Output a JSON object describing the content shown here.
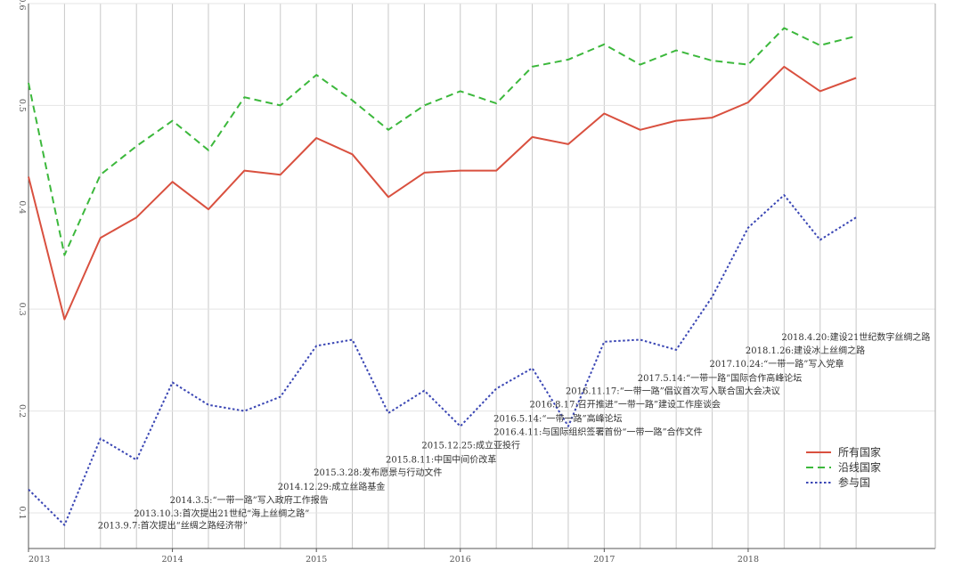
{
  "chart_data": {
    "type": "line",
    "title": "",
    "xlabel": "",
    "ylabel": "",
    "xlim": [
      2013.0,
      2019.3
    ],
    "ylim": [
      0.065,
      0.6
    ],
    "y_ticks": [
      "0.1",
      "0.2",
      "0.3",
      "0.4",
      "0.5",
      "0.6"
    ],
    "y_tick_values": [
      0.1,
      0.2,
      0.3,
      0.4,
      0.5,
      0.6
    ],
    "x_ticks": [
      "2013",
      "2014",
      "2015",
      "2016",
      "2017",
      "2018"
    ],
    "x_tick_values": [
      2013,
      2014,
      2015,
      2016,
      2017,
      2018
    ],
    "grid": true,
    "legend_position": "bottom-right",
    "x": [
      2013.0,
      2013.25,
      2013.5,
      2013.75,
      2014.0,
      2014.25,
      2014.5,
      2014.75,
      2015.0,
      2015.25,
      2015.5,
      2015.75,
      2016.0,
      2016.25,
      2016.5,
      2016.75,
      2017.0,
      2017.25,
      2017.5,
      2017.75,
      2018.0,
      2018.25,
      2018.5,
      2018.75
    ],
    "series": [
      {
        "name": "所有国家",
        "color": "#d9503f",
        "dash": "solid",
        "values": [
          0.43,
          0.29,
          0.37,
          0.39,
          0.425,
          0.398,
          0.436,
          0.432,
          0.468,
          0.452,
          0.41,
          0.434,
          0.436,
          0.436,
          0.469,
          0.462,
          0.492,
          0.476,
          0.485,
          0.488,
          0.503,
          0.538,
          0.514,
          0.527
        ]
      },
      {
        "name": "沿线国家",
        "color": "#3cb83c",
        "dash": "dashed",
        "values": [
          0.522,
          0.353,
          0.432,
          0.46,
          0.485,
          0.456,
          0.508,
          0.5,
          0.53,
          0.505,
          0.476,
          0.5,
          0.514,
          0.502,
          0.538,
          0.545,
          0.56,
          0.54,
          0.554,
          0.544,
          0.54,
          0.576,
          0.559,
          0.568
        ]
      },
      {
        "name": "参与国",
        "color": "#3a46b4",
        "dash": "dotted",
        "values": [
          0.123,
          0.088,
          0.173,
          0.152,
          0.228,
          0.206,
          0.2,
          0.214,
          0.264,
          0.27,
          0.198,
          0.22,
          0.185,
          0.222,
          0.242,
          0.185,
          0.268,
          0.27,
          0.26,
          0.312,
          0.38,
          0.412,
          0.368,
          0.39
        ]
      }
    ],
    "annotations": [
      {
        "text": "2013.9.7:首次提出“丝绸之路经济带”",
        "x": 2013.5,
        "y": 0.088
      },
      {
        "text": "2013.10.3:首次提出21世纪“海上丝绸之路”",
        "x": 2013.75,
        "y": 0.1
      },
      {
        "text": "2014.3.5:“一带一路”写入政府工作报告",
        "x": 2014.0,
        "y": 0.113
      },
      {
        "text": "2014.12.29:成立丝路基金",
        "x": 2014.75,
        "y": 0.126
      },
      {
        "text": "2015.3.28:发布愿景与行动文件",
        "x": 2015.0,
        "y": 0.14
      },
      {
        "text": "2015.8.11:中国中间价改革",
        "x": 2015.5,
        "y": 0.153
      },
      {
        "text": "2015.12.25:成立亚投行",
        "x": 2015.75,
        "y": 0.167
      },
      {
        "text": "2016.4.11:与国际组织签署首份“一带一路”合作文件",
        "x": 2016.25,
        "y": 0.18
      },
      {
        "text": "2016.5.14:“一带一路”高峰论坛",
        "x": 2016.25,
        "y": 0.193
      },
      {
        "text": "2016.8.17:召开推进“一带一路”建设工作座谈会",
        "x": 2016.5,
        "y": 0.207
      },
      {
        "text": "2016.11.17:“一带一路”倡议首次写入联合国大会决议",
        "x": 2016.75,
        "y": 0.22
      },
      {
        "text": "2017.5.14:“一带一路”国际合作高峰论坛",
        "x": 2017.25,
        "y": 0.233
      },
      {
        "text": "2017.10.24:“一带一路”写入党章",
        "x": 2017.75,
        "y": 0.247
      },
      {
        "text": "2018.1.26:建设冰上丝绸之路",
        "x": 2018.0,
        "y": 0.26
      },
      {
        "text": "2018.4.20:建设21世纪数字丝绸之路",
        "x": 2018.25,
        "y": 0.273
      }
    ]
  }
}
